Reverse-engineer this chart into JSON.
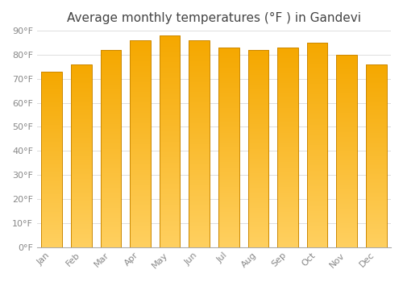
{
  "title": "Average monthly temperatures (°F ) in Gandevi",
  "months": [
    "Jan",
    "Feb",
    "Mar",
    "Apr",
    "May",
    "Jun",
    "Jul",
    "Aug",
    "Sep",
    "Oct",
    "Nov",
    "Dec"
  ],
  "values": [
    73,
    76,
    82,
    86,
    88,
    86,
    83,
    82,
    83,
    85,
    80,
    76
  ],
  "ylim": [
    0,
    90
  ],
  "yticks": [
    0,
    10,
    20,
    30,
    40,
    50,
    60,
    70,
    80,
    90
  ],
  "ytick_labels": [
    "0°F",
    "10°F",
    "20°F",
    "30°F",
    "40°F",
    "50°F",
    "60°F",
    "70°F",
    "80°F",
    "90°F"
  ],
  "bar_color_top": "#F5A800",
  "bar_color_bottom": "#FFD060",
  "bar_edge_color": "#CC8800",
  "background_color": "#FFFFFF",
  "grid_color": "#DDDDDD",
  "title_fontsize": 11,
  "tick_fontsize": 8,
  "title_color": "#444444",
  "tick_color": "#888888",
  "bar_width": 0.7
}
